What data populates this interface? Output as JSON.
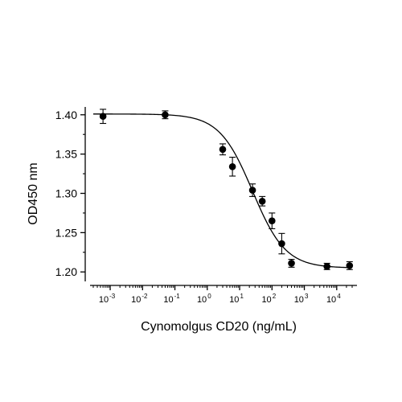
{
  "chart_data": {
    "type": "scatter",
    "title": "",
    "xlabel": "Cynomolgus CD20 (ng/mL)",
    "ylabel": "OD450 nm",
    "x_scale": "log",
    "xlim": [
      0.0003,
      30000
    ],
    "ylim": [
      1.19,
      1.41
    ],
    "grid": false,
    "legend": "none",
    "y_ticks": [
      {
        "value": 1.2,
        "label": "1.20"
      },
      {
        "value": 1.25,
        "label": "1.25"
      },
      {
        "value": 1.3,
        "label": "1.30"
      },
      {
        "value": 1.35,
        "label": "1.35"
      },
      {
        "value": 1.4,
        "label": "1.40"
      }
    ],
    "x_ticks": [
      {
        "value": 0.001,
        "base": "10",
        "exp": "-3"
      },
      {
        "value": 0.01,
        "base": "10",
        "exp": "-2"
      },
      {
        "value": 0.1,
        "base": "10",
        "exp": "-1"
      },
      {
        "value": 1,
        "base": "10",
        "exp": "0"
      },
      {
        "value": 10,
        "base": "10",
        "exp": "1"
      },
      {
        "value": 100,
        "base": "10",
        "exp": "2"
      },
      {
        "value": 1000,
        "base": "10",
        "exp": "3"
      },
      {
        "value": 10000,
        "base": "10",
        "exp": "4"
      }
    ],
    "points": [
      {
        "x": 0.0006,
        "y": 1.398,
        "err": 0.009
      },
      {
        "x": 0.05,
        "y": 1.4,
        "err": 0.005
      },
      {
        "x": 3.0,
        "y": 1.356,
        "err": 0.007
      },
      {
        "x": 6.0,
        "y": 1.334,
        "err": 0.012
      },
      {
        "x": 25,
        "y": 1.304,
        "err": 0.008
      },
      {
        "x": 50,
        "y": 1.29,
        "err": 0.006
      },
      {
        "x": 100,
        "y": 1.265,
        "err": 0.01
      },
      {
        "x": 200,
        "y": 1.236,
        "err": 0.013
      },
      {
        "x": 400,
        "y": 1.211,
        "err": 0.005
      },
      {
        "x": 5000,
        "y": 1.207,
        "err": 0.004
      },
      {
        "x": 25000,
        "y": 1.208,
        "err": 0.005
      }
    ],
    "fit_curve": {
      "model": "4PL",
      "top": 1.401,
      "bottom": 1.205,
      "ec50": 25,
      "hill": 0.85
    },
    "colors": {
      "marker": "#000000",
      "line": "#000000",
      "axis": "#000000"
    }
  }
}
